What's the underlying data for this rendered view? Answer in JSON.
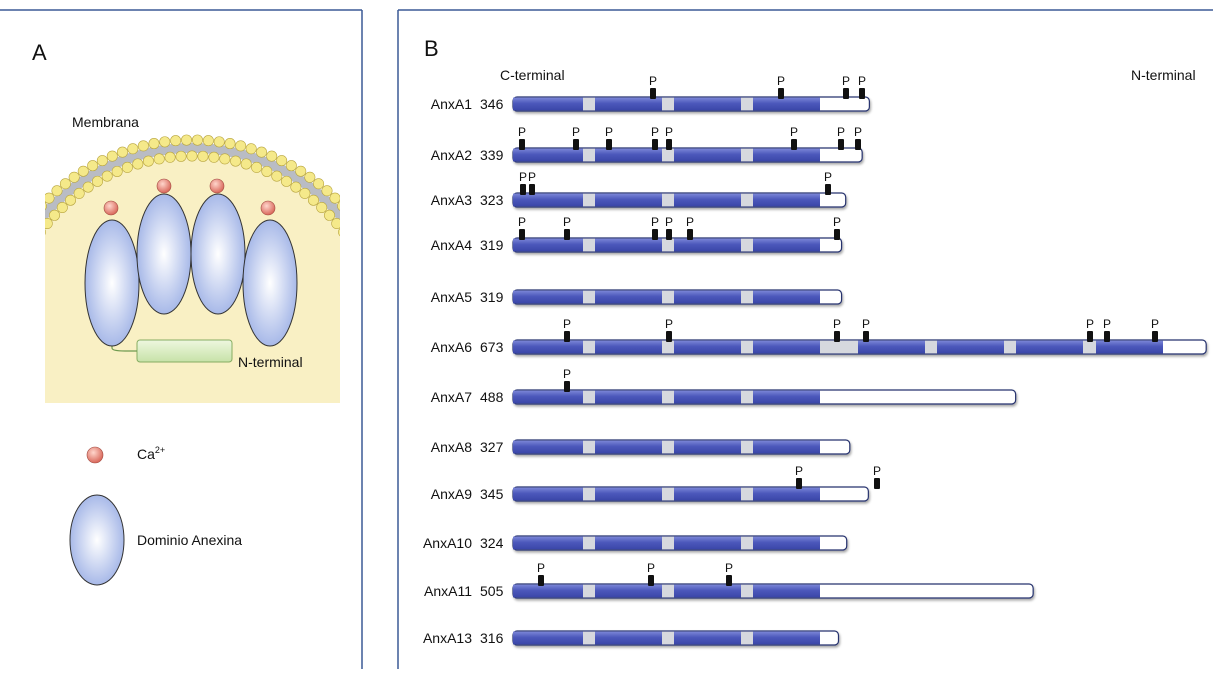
{
  "panel_a": {
    "label": "A",
    "membrane": "Membrana",
    "n_terminal": "N-terminal",
    "legend": {
      "calcium": "Ca",
      "calcium_charge": "2+",
      "domain": "Dominio Anexina"
    }
  },
  "panel_b": {
    "label": "B",
    "c_terminal": "C-terminal",
    "n_terminal": "N-terminal",
    "proteins": [
      {
        "name": "AnxA1",
        "length": 346,
        "sites": [
          "P",
          "P",
          "P",
          "P"
        ]
      },
      {
        "name": "AnxA2",
        "length": 339,
        "sites": [
          "P",
          "P",
          "P",
          "P",
          "P",
          "P",
          "P",
          "P"
        ]
      },
      {
        "name": "AnxA3",
        "length": 323,
        "sites": [
          "P",
          "P",
          "P"
        ]
      },
      {
        "name": "AnxA4",
        "length": 319,
        "sites": [
          "P",
          "P",
          "P",
          "P",
          "P",
          "P"
        ]
      },
      {
        "name": "AnxA5",
        "length": 319,
        "sites": []
      },
      {
        "name": "AnxA6",
        "length": 673,
        "sites": [
          "P",
          "P",
          "P",
          "P",
          "P",
          "P",
          "P"
        ]
      },
      {
        "name": "AnxA7",
        "length": 488,
        "sites": [
          "P"
        ]
      },
      {
        "name": "AnxA8",
        "length": 327,
        "sites": []
      },
      {
        "name": "AnxA9",
        "length": 345,
        "sites": [
          "P",
          "P"
        ]
      },
      {
        "name": "AnxA10",
        "length": 324,
        "sites": []
      },
      {
        "name": "AnxA11",
        "length": 505,
        "sites": [
          "P",
          "P",
          "P"
        ]
      },
      {
        "name": "AnxA13",
        "length": 316,
        "sites": []
      }
    ]
  }
}
